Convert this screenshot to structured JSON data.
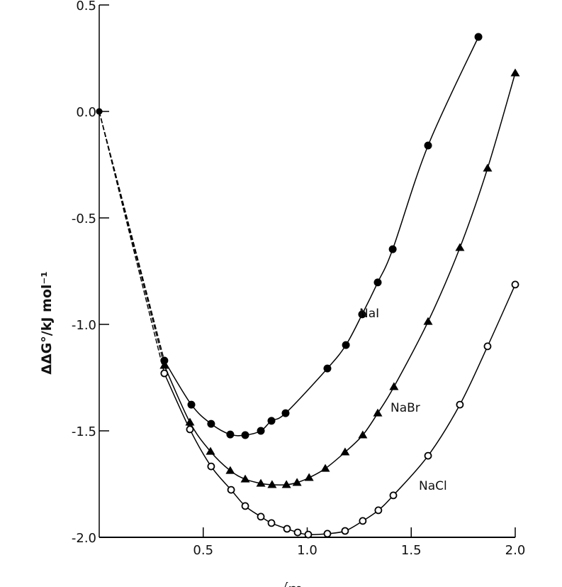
{
  "chart_data": {
    "type": "line",
    "title": "",
    "xlabel": "√m",
    "ylabel": "ΔΔG°/kJ mol⁻¹",
    "xlim": [
      0,
      2.0
    ],
    "ylim": [
      -2.0,
      0.5
    ],
    "xticks": [
      "0.5",
      "1.0",
      "1.5",
      "2.0"
    ],
    "yticks": [
      "0.5",
      "0.0",
      "-0.5",
      "-1.0",
      "-1.5",
      "-2.0"
    ],
    "grid": false,
    "legend": "inline labels",
    "series": [
      {
        "name": "NaI",
        "marker": "filled-circle",
        "x": [
          0,
          0.313,
          0.443,
          0.538,
          0.63,
          0.702,
          0.777,
          0.828,
          0.896,
          1.097,
          1.186,
          1.264,
          1.339,
          1.411,
          1.581,
          1.823
        ],
        "y": [
          0,
          -1.17,
          -1.377,
          -1.467,
          -1.517,
          -1.52,
          -1.5,
          -1.453,
          -1.417,
          -1.207,
          -1.097,
          -0.953,
          -0.803,
          -0.647,
          -0.16,
          0.35
        ]
      },
      {
        "name": "NaBr",
        "marker": "filled-triangle",
        "x": [
          0,
          0.313,
          0.436,
          0.535,
          0.63,
          0.702,
          0.777,
          0.831,
          0.9,
          0.951,
          1.009,
          1.087,
          1.182,
          1.267,
          1.339,
          1.417,
          1.581,
          1.734,
          1.867,
          2.0
        ],
        "y": [
          0,
          -1.193,
          -1.46,
          -1.597,
          -1.687,
          -1.727,
          -1.747,
          -1.753,
          -1.753,
          -1.743,
          -1.72,
          -1.677,
          -1.6,
          -1.52,
          -1.417,
          -1.293,
          -0.987,
          -0.64,
          -0.267,
          0.18
        ]
      },
      {
        "name": "NaCl",
        "marker": "open-circle",
        "x": [
          0,
          0.313,
          0.436,
          0.538,
          0.634,
          0.702,
          0.777,
          0.828,
          0.903,
          0.954,
          1.005,
          1.097,
          1.182,
          1.267,
          1.342,
          1.414,
          1.581,
          1.734,
          1.867,
          2.0
        ],
        "y": [
          0,
          -1.23,
          -1.493,
          -1.667,
          -1.777,
          -1.853,
          -1.903,
          -1.933,
          -1.96,
          -1.977,
          -1.987,
          -1.983,
          -1.97,
          -1.923,
          -1.873,
          -1.803,
          -1.617,
          -1.377,
          -1.103,
          -0.813
        ]
      }
    ],
    "series_labels": {
      "NaI": "NaI",
      "NaBr": "NaBr",
      "NaCl": "NaCl"
    }
  }
}
